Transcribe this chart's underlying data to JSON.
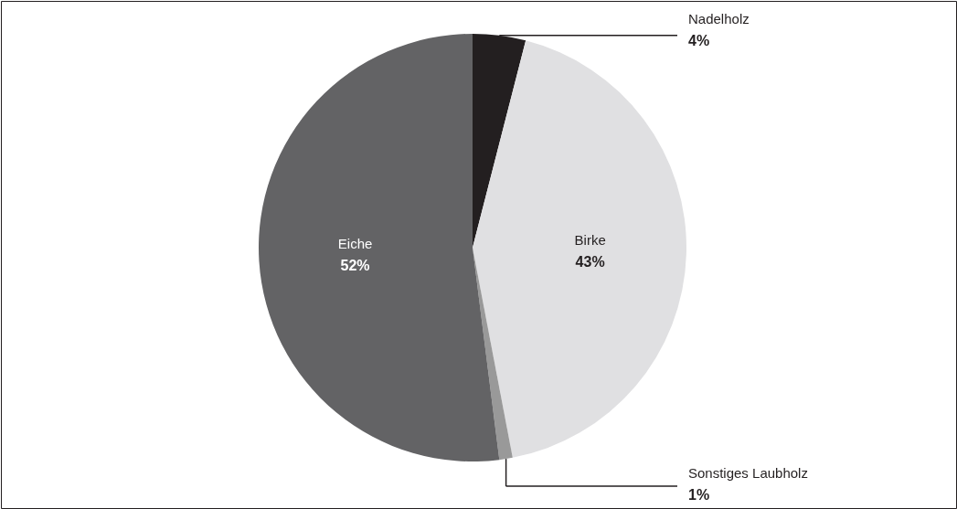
{
  "chart_data": {
    "type": "pie",
    "categories": [
      "Nadelholz",
      "Birke",
      "Sonstiges Laubholz",
      "Eiche"
    ],
    "values": [
      4,
      43,
      1,
      52
    ],
    "value_labels": [
      "4%",
      "43%",
      "1%",
      "52%"
    ],
    "colors": [
      "#231f20",
      "#e0e0e2",
      "#999999",
      "#636365"
    ]
  }
}
